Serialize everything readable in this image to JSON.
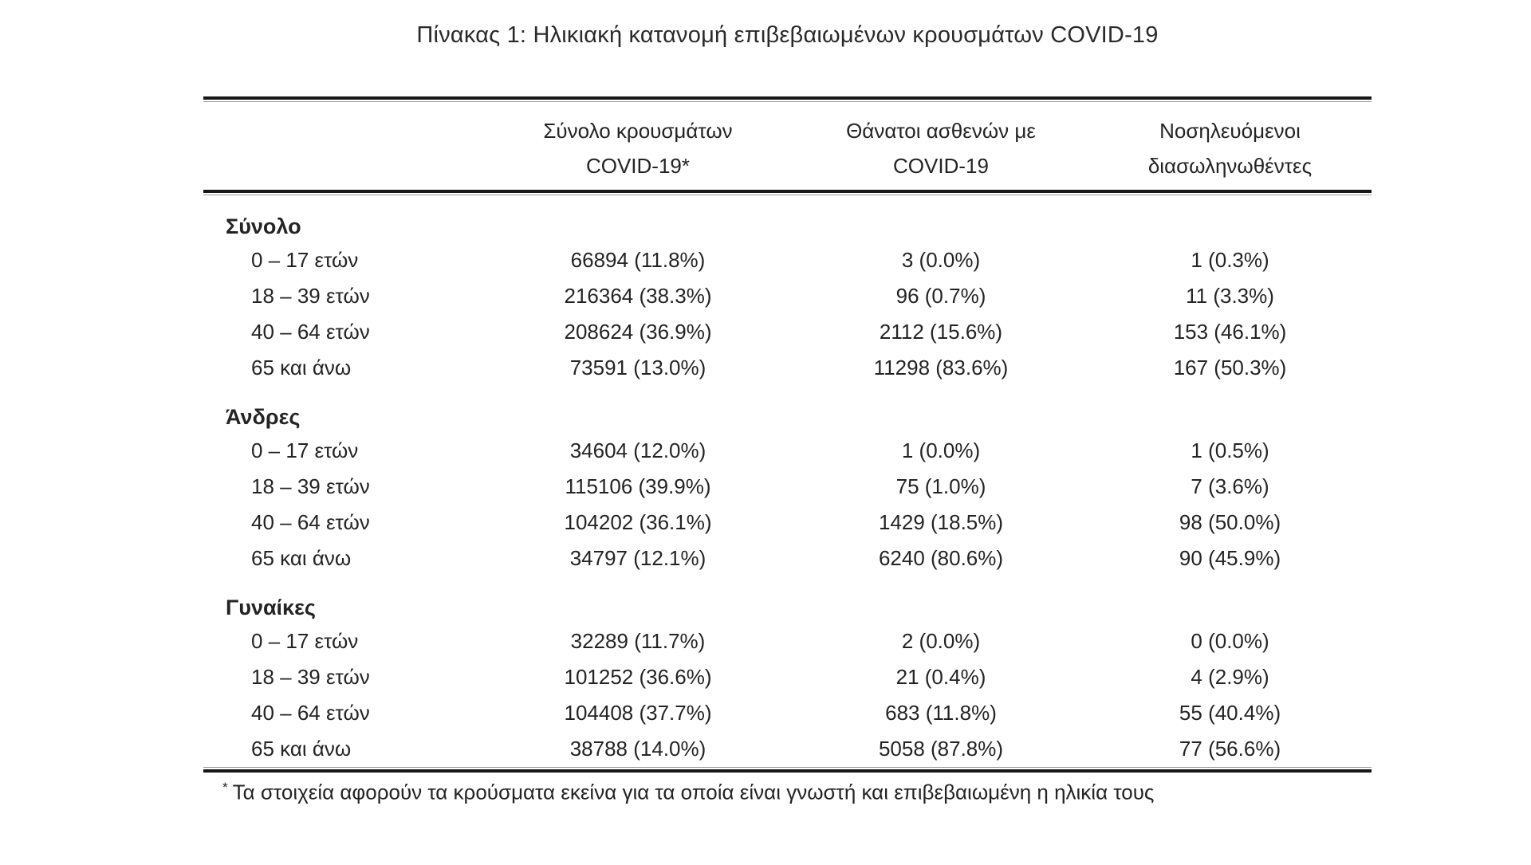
{
  "title": "Πίνακας 1: Ηλικιακή κατανομή επιβεβαιωμένων κρουσμάτων COVID-19",
  "table": {
    "header": {
      "label_col": "",
      "col_cases": {
        "line1": "Σύνολο κρουσμάτων",
        "line2": "COVID-19*"
      },
      "col_deaths": {
        "line1": "Θάνατοι ασθενών με",
        "line2": "COVID-19"
      },
      "col_intubated": {
        "line1": "Νοσηλευόμενοι",
        "line2": "διασωληνωθέντες"
      }
    },
    "groups": [
      {
        "label": "Σύνολο",
        "rows": [
          {
            "age": "0 – 17 ετών",
            "cases": "66894 (11.8%)",
            "deaths": "3 (0.0%)",
            "intubated": "1 (0.3%)"
          },
          {
            "age": "18 – 39 ετών",
            "cases": "216364 (38.3%)",
            "deaths": "96 (0.7%)",
            "intubated": "11 (3.3%)"
          },
          {
            "age": "40 – 64 ετών",
            "cases": "208624 (36.9%)",
            "deaths": "2112 (15.6%)",
            "intubated": "153 (46.1%)"
          },
          {
            "age": "65 και άνω",
            "cases": "73591 (13.0%)",
            "deaths": "11298 (83.6%)",
            "intubated": "167 (50.3%)"
          }
        ]
      },
      {
        "label": "Άνδρες",
        "rows": [
          {
            "age": "0 – 17 ετών",
            "cases": "34604 (12.0%)",
            "deaths": "1 (0.0%)",
            "intubated": "1 (0.5%)"
          },
          {
            "age": "18 – 39 ετών",
            "cases": "115106 (39.9%)",
            "deaths": "75 (1.0%)",
            "intubated": "7 (3.6%)"
          },
          {
            "age": "40 – 64 ετών",
            "cases": "104202 (36.1%)",
            "deaths": "1429 (18.5%)",
            "intubated": "98 (50.0%)"
          },
          {
            "age": "65 και άνω",
            "cases": "34797 (12.1%)",
            "deaths": "6240 (80.6%)",
            "intubated": "90 (45.9%)"
          }
        ]
      },
      {
        "label": "Γυναίκες",
        "rows": [
          {
            "age": "0 – 17 ετών",
            "cases": "32289 (11.7%)",
            "deaths": "2 (0.0%)",
            "intubated": "0 (0.0%)"
          },
          {
            "age": "18 – 39 ετών",
            "cases": "101252 (36.6%)",
            "deaths": "21 (0.4%)",
            "intubated": "4 (2.9%)"
          },
          {
            "age": "40 – 64 ετών",
            "cases": "104408 (37.7%)",
            "deaths": "683 (11.8%)",
            "intubated": "55 (40.4%)"
          },
          {
            "age": "65 και άνω",
            "cases": "38788 (14.0%)",
            "deaths": "5058 (87.8%)",
            "intubated": "77 (56.6%)"
          }
        ]
      }
    ]
  },
  "footnote": {
    "marker": "*",
    "text": "Τα στοιχεία αφορούν τα κρούσματα εκείνα για τα οποία είναι γνωστή και επιβεβαιωμένη η ηλικία τους"
  },
  "colors": {
    "background": "#ffffff",
    "text": "#242424",
    "rule_dark": "#161616",
    "rule_light": "#9a9a9a"
  }
}
